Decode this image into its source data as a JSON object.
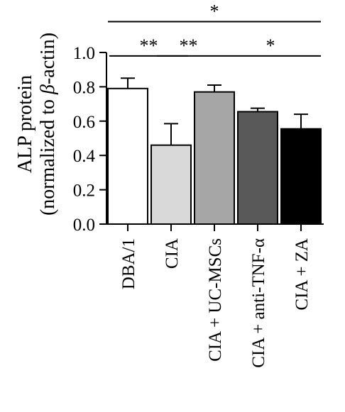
{
  "chart_data": {
    "type": "bar",
    "title": "",
    "xlabel": "",
    "ylabel_line1": "ALP protein",
    "ylabel_line2_prefix": "(normalized to ",
    "ylabel_line2_greek": "β",
    "ylabel_line2_suffix": "-actin)",
    "ylim": [
      0,
      1.0
    ],
    "yticks": [
      0.0,
      0.2,
      0.4,
      0.6,
      0.8,
      1.0
    ],
    "ytick_labels": [
      "0.0",
      "0.2",
      "0.4",
      "0.6",
      "0.8",
      "1.0"
    ],
    "categories": [
      "DBA/1",
      "CIA",
      "CIA + UC-MSCs",
      "CIA + anti-TNF-α",
      "CIA + ZA"
    ],
    "values": [
      0.79,
      0.46,
      0.77,
      0.655,
      0.555
    ],
    "errors": [
      0.06,
      0.125,
      0.04,
      0.02,
      0.085
    ],
    "colors": [
      "#ffffff",
      "#d9d9d9",
      "#a6a6a6",
      "#595959",
      "#000000"
    ],
    "significance": [
      {
        "from": 0,
        "to": 4,
        "label": "*",
        "level": 1.18
      },
      {
        "from": 0,
        "to": 1,
        "label": "**",
        "level": 0.98
      },
      {
        "from": 1,
        "to": 2,
        "label": "**",
        "level": 0.98
      },
      {
        "from": 2,
        "to": 4,
        "label": "*",
        "level": 0.98
      }
    ],
    "grid": false,
    "legend": "none"
  }
}
